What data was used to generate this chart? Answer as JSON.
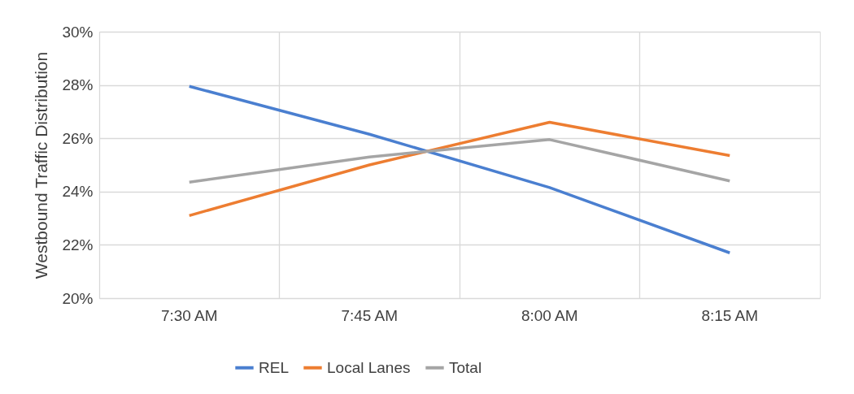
{
  "chart_data": {
    "type": "line",
    "ylabel": "Westbound Traffic Distribution",
    "categories": [
      "7:30 AM",
      "7:45 AM",
      "8:00 AM",
      "8:15 AM"
    ],
    "series": [
      {
        "name": "REL",
        "color": "#4a7fd0",
        "values": [
          27.95,
          26.15,
          24.15,
          21.7
        ]
      },
      {
        "name": "Local Lanes",
        "color": "#ed7d31",
        "values": [
          23.1,
          25.0,
          26.6,
          25.35
        ]
      },
      {
        "name": "Total",
        "color": "#a5a5a5",
        "values": [
          24.35,
          25.3,
          25.95,
          24.4
        ]
      }
    ],
    "ylim": [
      20,
      30
    ],
    "yticks": [
      {
        "value": 20,
        "label": "20%"
      },
      {
        "value": 22,
        "label": "22%"
      },
      {
        "value": 24,
        "label": "24%"
      },
      {
        "value": 26,
        "label": "26%"
      },
      {
        "value": 28,
        "label": "28%"
      },
      {
        "value": 30,
        "label": "30%"
      }
    ],
    "grid": true,
    "legend": "bottom",
    "marker": "none",
    "line_style": "solid"
  }
}
